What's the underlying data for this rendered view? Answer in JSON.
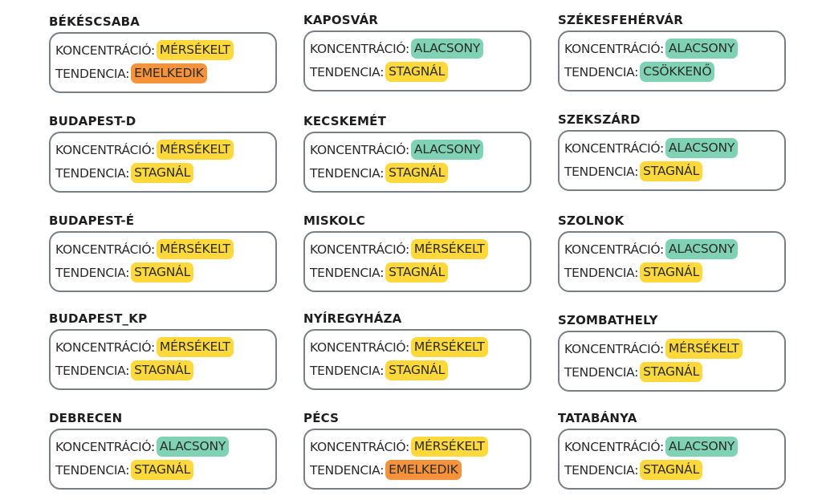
{
  "colors": {
    "mersekelt": "#ffd93b",
    "alacsony": "#7fd3b4",
    "stagnal": "#ffd93b",
    "emelkedik": "#f5923a",
    "csokkeno": "#7fd3b4"
  },
  "cities": [
    {
      "name": "BÉKÉSCSABA",
      "conc_label": "KONCENTRÁCIÓ:",
      "conc": "MÉRSÉKELT",
      "conc_level": "mersekelt",
      "trend_label": "TENDENCIA:",
      "trend": "EMELKEDIK",
      "trend_level": "emelkedik"
    },
    {
      "name": "KAPOSVÁR",
      "conc_label": "KONCENTRÁCIÓ:",
      "conc": "ALACSONY",
      "conc_level": "alacsony",
      "trend_label": "TENDENCIA:",
      "trend": "STAGNÁL",
      "trend_level": "stagnal"
    },
    {
      "name": "SZÉKESFEHÉRVÁR",
      "conc_label": "KONCENTRÁCIÓ:",
      "conc": "ALACSONY",
      "conc_level": "alacsony",
      "trend_label": "TENDENCIA:",
      "trend": "CSÖKKENŐ",
      "trend_level": "csokkeno"
    },
    {
      "name": "BUDAPEST-D",
      "conc_label": "KONCENTRÁCIÓ:",
      "conc": "MÉRSÉKELT",
      "conc_level": "mersekelt",
      "trend_label": "TENDENCIA:",
      "trend": "STAGNÁL",
      "trend_level": "stagnal"
    },
    {
      "name": "KECSKEMÉT",
      "conc_label": "KONCENTRÁCIÓ:",
      "conc": "ALACSONY",
      "conc_level": "alacsony",
      "trend_label": "TENDENCIA:",
      "trend": "STAGNÁL",
      "trend_level": "stagnal"
    },
    {
      "name": "SZEKSZÁRD",
      "conc_label": "KONCENTRÁCIÓ:",
      "conc": "ALACSONY",
      "conc_level": "alacsony",
      "trend_label": "TENDENCIA:",
      "trend": "STAGNÁL",
      "trend_level": "stagnal"
    },
    {
      "name": "BUDAPEST-É",
      "conc_label": "KONCENTRÁCIÓ:",
      "conc": "MÉRSÉKELT",
      "conc_level": "mersekelt",
      "trend_label": "TENDENCIA:",
      "trend": "STAGNÁL",
      "trend_level": "stagnal"
    },
    {
      "name": "MISKOLC",
      "conc_label": "KONCENTRÁCIÓ:",
      "conc": "MÉRSÉKELT",
      "conc_level": "mersekelt",
      "trend_label": "TENDENCIA:",
      "trend": "STAGNÁL",
      "trend_level": "stagnal"
    },
    {
      "name": "SZOLNOK",
      "conc_label": "KONCENTRÁCIÓ:",
      "conc": "ALACSONY",
      "conc_level": "alacsony",
      "trend_label": "TENDENCIA:",
      "trend": "STAGNÁL",
      "trend_level": "stagnal"
    },
    {
      "name": "BUDAPEST_KP",
      "conc_label": "KONCENTRÁCIÓ:",
      "conc": "MÉRSÉKELT",
      "conc_level": "mersekelt",
      "trend_label": "TENDENCIA:",
      "trend": "STAGNÁL",
      "trend_level": "stagnal"
    },
    {
      "name": "NYÍREGYHÁZA",
      "conc_label": "KONCENTRÁCIÓ:",
      "conc": "MÉRSÉKELT",
      "conc_level": "mersekelt",
      "trend_label": "TENDENCIA:",
      "trend": "STAGNÁL",
      "trend_level": "stagnal"
    },
    {
      "name": "SZOMBATHELY",
      "conc_label": "KONCENTRÁCIÓ:",
      "conc": "MÉRSÉKELT",
      "conc_level": "mersekelt",
      "trend_label": "TENDENCIA:",
      "trend": "STAGNÁL",
      "trend_level": "stagnal"
    },
    {
      "name": "DEBRECEN",
      "conc_label": "KONCENTRÁCIÓ:",
      "conc": "ALACSONY",
      "conc_level": "alacsony",
      "trend_label": "TENDENCIA:",
      "trend": "STAGNÁL",
      "trend_level": "stagnal"
    },
    {
      "name": "PÉCS",
      "conc_label": "KONCENTRÁCIÓ:",
      "conc": "MÉRSÉKELT",
      "conc_level": "mersekelt",
      "trend_label": "TENDENCIA:",
      "trend": "EMELKEDIK",
      "trend_level": "emelkedik"
    },
    {
      "name": "TATABÁNYA",
      "conc_label": "KONCENTRÁCIÓ:",
      "conc": "ALACSONY",
      "conc_level": "alacsony",
      "trend_label": "TENDENCIA:",
      "trend": "STAGNÁL",
      "trend_level": "stagnal"
    }
  ]
}
